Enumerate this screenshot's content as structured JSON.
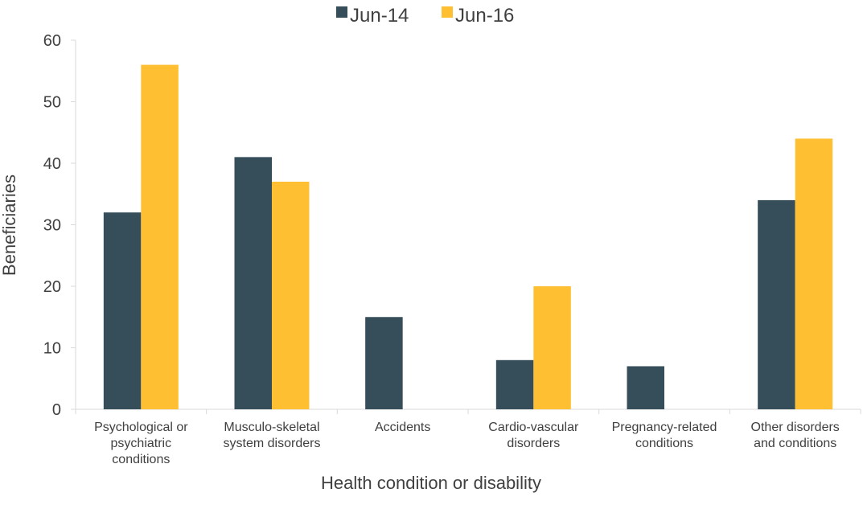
{
  "chart_data": {
    "type": "bar",
    "title": "",
    "xlabel": "Health condition or disability",
    "ylabel": "Beneficiaries",
    "ylim": [
      0,
      60
    ],
    "yticks": [
      0,
      10,
      20,
      30,
      40,
      50,
      60
    ],
    "grid": false,
    "legend_position": "top",
    "categories": [
      [
        "Psychological or",
        "psychiatric",
        "conditions"
      ],
      [
        "Musculo-skeletal",
        "system disorders"
      ],
      [
        "Accidents"
      ],
      [
        "Cardio-vascular",
        "disorders"
      ],
      [
        "Pregnancy-related",
        "conditions"
      ],
      [
        "Other disorders",
        "and conditions"
      ]
    ],
    "series": [
      {
        "name": "Jun-14",
        "color": "#364D5A",
        "values": [
          32,
          41,
          15,
          8,
          7,
          34
        ]
      },
      {
        "name": "Jun-16",
        "color": "#FFBF33",
        "values": [
          56,
          37,
          0,
          20,
          0,
          44
        ]
      }
    ]
  }
}
